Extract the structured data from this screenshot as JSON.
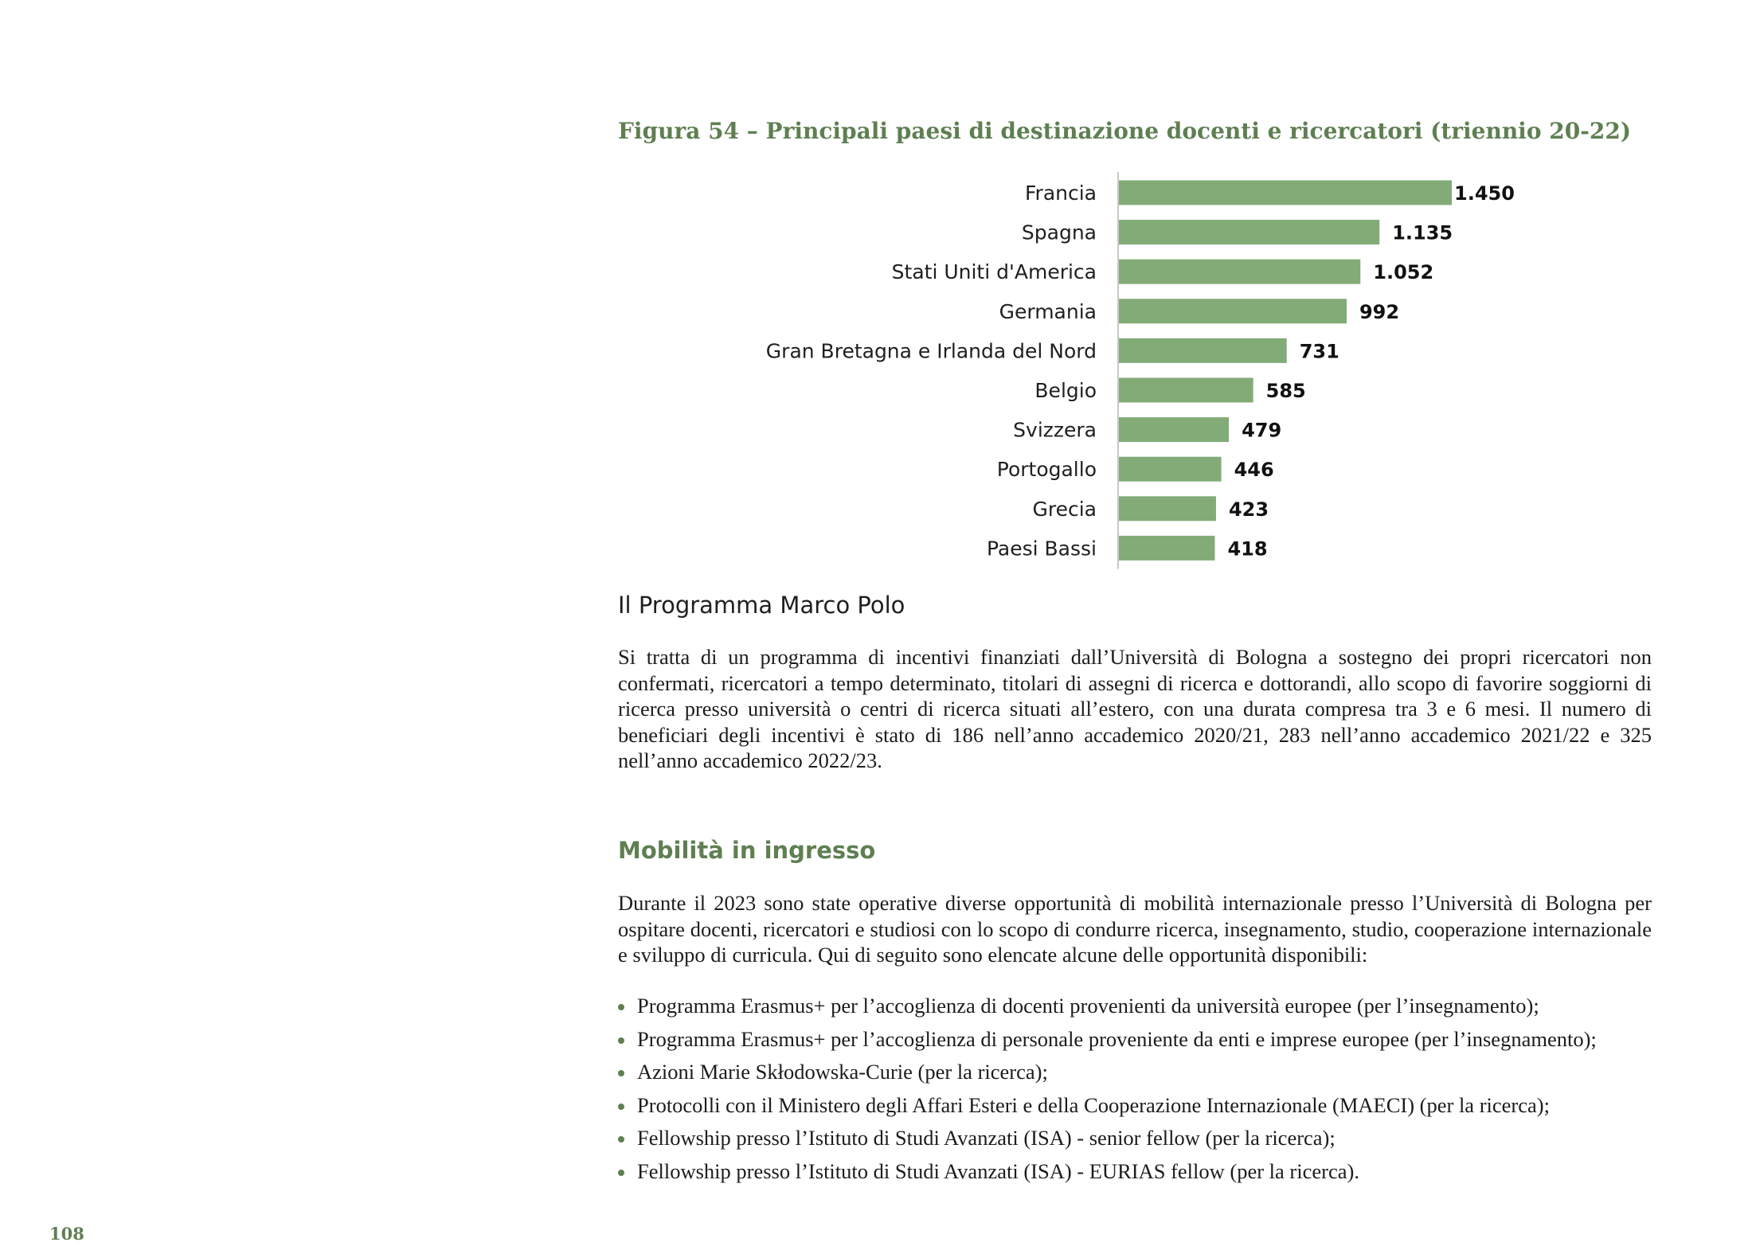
{
  "figure": {
    "title": "Figura 54 – Principali paesi di destinazione docenti e ricercatori (triennio 20-22)"
  },
  "chart_data": {
    "type": "bar",
    "orientation": "horizontal",
    "title": "",
    "categories": [
      "Francia",
      "Spagna",
      "Stati Uniti d'America",
      "Germania",
      "Gran Bretagna e Irlanda del Nord",
      "Belgio",
      "Svizzera",
      "Portogallo",
      "Grecia",
      "Paesi Bassi"
    ],
    "values": [
      1450,
      1135,
      1052,
      992,
      731,
      585,
      479,
      446,
      423,
      418
    ],
    "value_labels": [
      "1.450",
      "1.135",
      "1.052",
      "992",
      "731",
      "585",
      "479",
      "446",
      "423",
      "418"
    ],
    "xlabel": "",
    "ylabel": "",
    "xlim": [
      0,
      1450
    ],
    "grid": false,
    "legend": "none",
    "bar_color": "#82ab78"
  },
  "section": {
    "title": "Il Programma Marco Polo",
    "paragraph": "Si tratta di un programma di incentivi finanziati dall’Università di Bologna a sostegno dei propri ricercatori non confermati, ricercatori a tempo determinato, titolari di assegni di ricerca e dottorandi, allo scopo di favorire soggiorni di ricerca presso università o centri di ricerca situati all’estero, con una durata compresa tra 3 e 6 mesi. Il numero di beneficiari degli incentivi è stato di 186 nell’anno accademico 2020/21, 283 nell’anno accademico 2021/22 e 325 nell’anno accademico 2022/23."
  },
  "mobility": {
    "heading": "Mobilità in ingresso",
    "paragraph": "Durante il 2023 sono state operative diverse opportunità di mobilità internazionale presso l’Università di Bologna per ospitare docenti, ricercatori e studiosi con lo scopo di condurre ricerca, insegnamento, studio, cooperazione internazionale e sviluppo di curricula. Qui di seguito sono elencate alcune delle opportunità disponibili:",
    "items": [
      "Programma Erasmus+ per l’accoglienza di docenti provenienti da università europee (per l’insegnamento);",
      "Programma Erasmus+ per l’accoglienza di personale proveniente da enti e imprese europee (per l’insegnamento);",
      "Azioni Marie Skłodowska-Curie (per la ricerca);",
      "Protocolli con il Ministero degli Affari Esteri e della Cooperazione Internazionale (MAECI) (per la ricerca);",
      "Fellowship presso l’Istituto di Studi Avanzati (ISA) - senior fellow (per la ricerca);",
      "Fellowship presso l’Istituto di Studi Avanzati (ISA) - EURIAS fellow (per la ricerca)."
    ]
  },
  "page": {
    "number": "108"
  },
  "colors": {
    "accent": "#5f7f52",
    "bar": "#82ab78"
  }
}
